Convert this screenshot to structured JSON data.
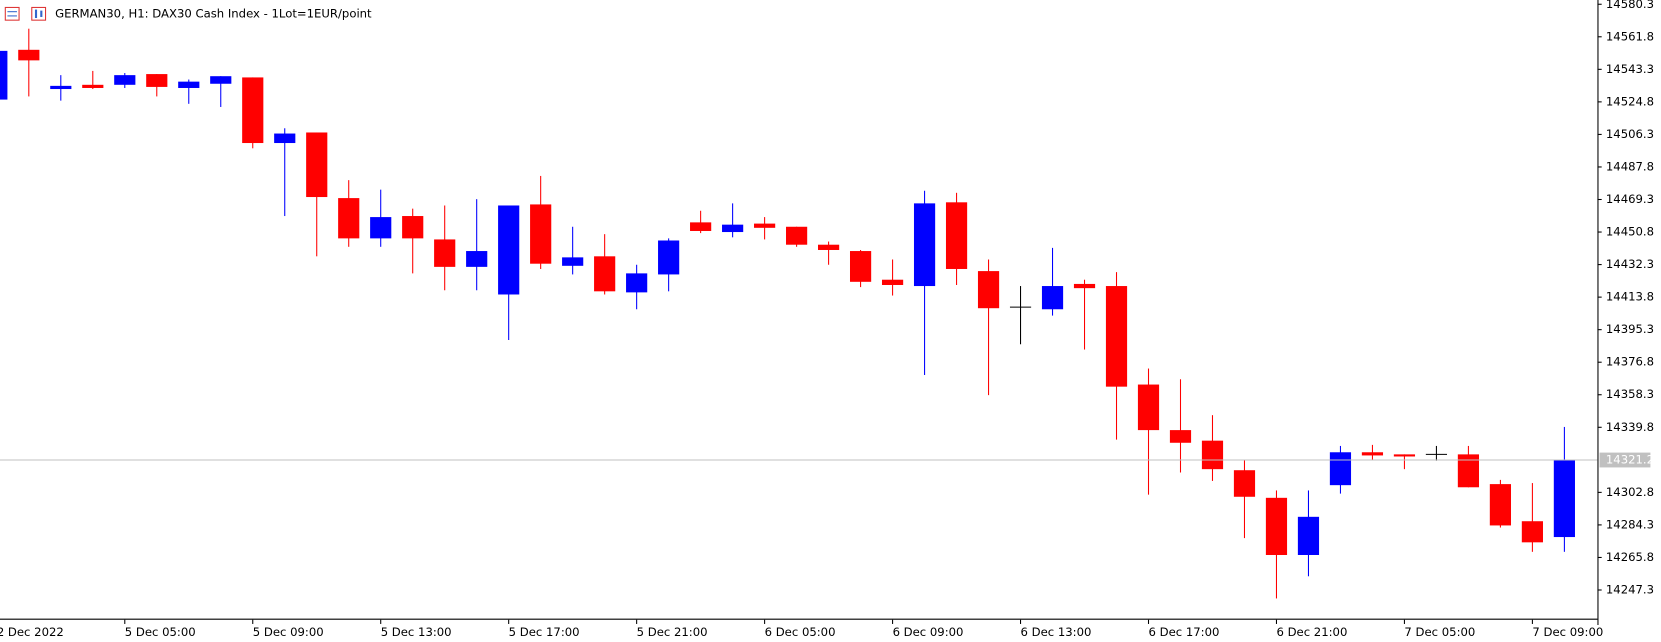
{
  "chart_data": {
    "type": "candlestick",
    "title": "GERMAN30, H1:  DAX30 Cash Index  - 1Lot=1EUR/point",
    "categories": [
      "2 Dec 2022",
      null,
      null,
      null,
      "5 Dec 05:00",
      null,
      null,
      null,
      "5 Dec 09:00",
      null,
      null,
      null,
      "5 Dec 13:00",
      null,
      null,
      null,
      "5 Dec 17:00",
      null,
      null,
      null,
      "5 Dec 21:00",
      null,
      null,
      null,
      "6 Dec 05:00",
      null,
      null,
      null,
      "6 Dec 09:00",
      null,
      null,
      null,
      "6 Dec 13:00",
      null,
      null,
      null,
      "6 Dec 17:00",
      null,
      null,
      null,
      "6 Dec 21:00",
      null,
      null,
      null,
      "7 Dec 05:00",
      null,
      null,
      null,
      "7 Dec 09:00",
      null
    ],
    "open": [
      14526.1,
      14554.4,
      14532.1,
      14534.5,
      14534.5,
      14540.6,
      14532.7,
      14535.1,
      14538.7,
      14501.4,
      14507.4,
      14470.1,
      14447.2,
      14459.9,
      14446.6,
      14431.0,
      14415.3,
      14466.5,
      14431.6,
      14437.0,
      14416.5,
      14426.7,
      14456.3,
      14450.8,
      14455.6,
      14453.8,
      14443.6,
      14440.0,
      14423.7,
      14420.1,
      14467.7,
      14428.6,
      14408.1,
      14406.9,
      14421.3,
      14420.1,
      14364.1,
      14338.2,
      14332.2,
      14315.4,
      14299.7,
      14267.2,
      14306.9,
      14325.6,
      14324.4,
      14324.4,
      14324.4,
      14307.5,
      14286.4,
      14277.4
    ],
    "high": [
      14553.8,
      14566.4,
      14540.0,
      14542.4,
      14541.2,
      14540.6,
      14537.5,
      14539.4,
      14538.7,
      14509.8,
      14507.4,
      14480.3,
      14474.9,
      14464.1,
      14465.9,
      14469.5,
      14465.9,
      14482.7,
      14453.8,
      14449.6,
      14432.2,
      14447.2,
      14462.9,
      14467.1,
      14459.3,
      14453.8,
      14445.4,
      14440.6,
      14435.2,
      14474.3,
      14473.1,
      14435.2,
      14420.1,
      14441.8,
      14423.7,
      14428.0,
      14373.2,
      14367.1,
      14346.7,
      14321.4,
      14303.9,
      14303.9,
      14329.2,
      14329.8,
      14324.4,
      14329.2,
      14329.2,
      14309.9,
      14308.1,
      14340.0
    ],
    "low": [
      14526.1,
      14527.9,
      14525.5,
      14532.1,
      14532.7,
      14527.9,
      14523.7,
      14521.9,
      14498.4,
      14459.9,
      14437.0,
      14442.4,
      14442.4,
      14427.3,
      14417.7,
      14417.7,
      14389.4,
      14429.8,
      14426.7,
      14415.3,
      14406.9,
      14417.1,
      14450.2,
      14447.8,
      14446.6,
      14442.4,
      14432.2,
      14419.5,
      14414.7,
      14369.5,
      14420.7,
      14358.1,
      14387.0,
      14403.3,
      14384.0,
      14332.8,
      14301.5,
      14314.1,
      14309.3,
      14276.8,
      14242.5,
      14255.1,
      14302.1,
      14321.4,
      14316.0,
      14320.8,
      14305.7,
      14282.8,
      14269.0,
      14269.0
    ],
    "close": [
      14553.8,
      14548.4,
      14533.9,
      14532.7,
      14540.0,
      14533.3,
      14536.3,
      14539.4,
      14501.4,
      14506.8,
      14470.7,
      14447.2,
      14459.3,
      14447.2,
      14431.0,
      14440.0,
      14465.9,
      14432.8,
      14436.4,
      14417.1,
      14427.3,
      14446.0,
      14451.4,
      14455.0,
      14453.2,
      14443.6,
      14440.6,
      14422.5,
      14420.7,
      14467.1,
      14429.8,
      14407.5,
      14408.1,
      14420.1,
      14418.9,
      14362.9,
      14338.2,
      14331.0,
      14316.0,
      14300.3,
      14267.2,
      14288.9,
      14325.6,
      14323.8,
      14323.2,
      14324.4,
      14305.7,
      14284.0,
      14274.4,
      14321.2
    ],
    "up_color": "#0000ff",
    "down_color": "#ff0000",
    "doji_color": "#000000",
    "ylim": [
      14230.4,
      14582.7
    ],
    "yticks": [
      14580.3,
      14561.8,
      14543.3,
      14524.8,
      14506.3,
      14487.8,
      14469.3,
      14450.8,
      14432.3,
      14413.8,
      14395.3,
      14376.8,
      14358.3,
      14339.8,
      14302.8,
      14284.3,
      14265.8,
      14247.3
    ],
    "current_price": 14321.2
  }
}
